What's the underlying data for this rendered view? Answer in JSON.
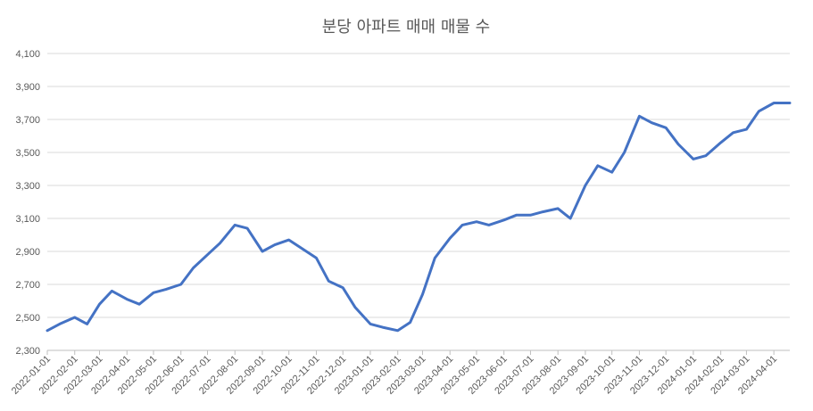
{
  "chart_data": {
    "type": "line",
    "title": "분당 아파트 매매 매물 수",
    "xlabel": "",
    "ylabel": "",
    "ylim": [
      2300,
      4100
    ],
    "yticks": [
      2300,
      2500,
      2700,
      2900,
      3100,
      3300,
      3500,
      3700,
      3900,
      4100
    ],
    "ytick_labels": [
      "2,300",
      "2,500",
      "2,700",
      "2,900",
      "3,100",
      "3,300",
      "3,500",
      "3,700",
      "3,900",
      "4,100"
    ],
    "xlim": [
      "2022-01-01",
      "2024-04-19"
    ],
    "xtick_labels": [
      "2022-01-01",
      "2022-02-01",
      "2022-03-01",
      "2022-04-01",
      "2022-05-01",
      "2022-06-01",
      "2022-07-01",
      "2022-08-01",
      "2022-09-01",
      "2022-10-01",
      "2022-11-01",
      "2022-12-01",
      "2023-01-01",
      "2023-02-01",
      "2023-03-01",
      "2023-04-01",
      "2023-05-01",
      "2023-06-01",
      "2023-07-01",
      "2023-08-01",
      "2023-09-01",
      "2023-10-01",
      "2023-11-01",
      "2023-12-01",
      "2024-01-01",
      "2024-02-01",
      "2024-03-01",
      "2024-04-01"
    ],
    "grid": true,
    "legend": "none",
    "color": "#4472c4",
    "series": [
      {
        "x": [
          "2022-01-01",
          "2022-01-15",
          "2022-02-01",
          "2022-02-15",
          "2022-03-01",
          "2022-03-15",
          "2022-04-01",
          "2022-04-15",
          "2022-05-01",
          "2022-05-15",
          "2022-06-01",
          "2022-06-15",
          "2022-07-01",
          "2022-07-15",
          "2022-08-01",
          "2022-08-15",
          "2022-09-01",
          "2022-09-15",
          "2022-10-01",
          "2022-10-15",
          "2022-11-01",
          "2022-11-15",
          "2022-12-01",
          "2022-12-15",
          "2023-01-01",
          "2023-01-15",
          "2023-02-01",
          "2023-02-15",
          "2023-03-01",
          "2023-03-15",
          "2023-04-01",
          "2023-04-15",
          "2023-05-01",
          "2023-05-15",
          "2023-06-01",
          "2023-06-15",
          "2023-07-01",
          "2023-07-15",
          "2023-08-01",
          "2023-08-15",
          "2023-09-01",
          "2023-09-15",
          "2023-10-01",
          "2023-10-15",
          "2023-11-01",
          "2023-11-15",
          "2023-12-01",
          "2023-12-15",
          "2024-01-01",
          "2024-01-15",
          "2024-02-01",
          "2024-02-15",
          "2024-03-01",
          "2024-03-15",
          "2024-04-01",
          "2024-04-19"
        ],
        "values": [
          2420,
          2460,
          2500,
          2460,
          2580,
          2660,
          2610,
          2580,
          2650,
          2670,
          2700,
          2800,
          2880,
          2950,
          3060,
          3040,
          2900,
          2940,
          2970,
          2920,
          2860,
          2720,
          2680,
          2560,
          2460,
          2440,
          2420,
          2470,
          2640,
          2860,
          2980,
          3060,
          3080,
          3060,
          3090,
          3120,
          3120,
          3140,
          3160,
          3100,
          3300,
          3420,
          3380,
          3500,
          3720,
          3680,
          3650,
          3550,
          3460,
          3480,
          3560,
          3620,
          3640,
          3750,
          3800,
          3800
        ]
      }
    ]
  }
}
